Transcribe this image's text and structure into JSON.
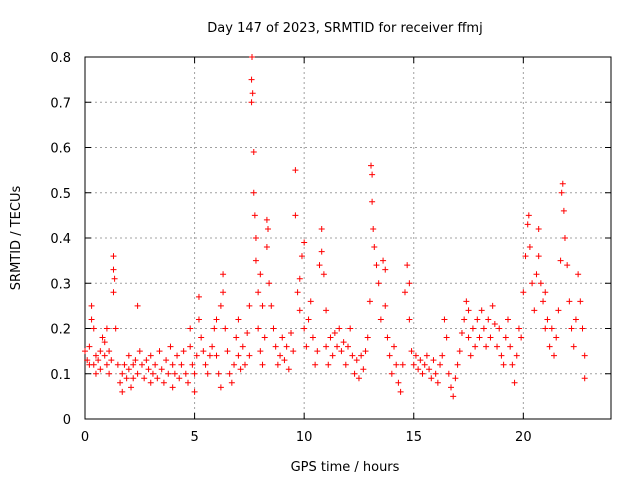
{
  "chart_data": {
    "type": "scatter",
    "title": "Day 147 of 2023, SRMTID for receiver ffmj",
    "xlabel": "GPS time / hours",
    "ylabel": "SRMTID / TECUs",
    "xlim": [
      0,
      24
    ],
    "ylim": [
      0,
      0.8
    ],
    "xticks": [
      0,
      5,
      10,
      15,
      20
    ],
    "yticks": [
      0,
      0.1,
      0.2,
      0.3,
      0.4,
      0.5,
      0.6,
      0.7,
      0.8
    ],
    "grid": true,
    "marker": "+",
    "series": [
      {
        "name": "SRMTID",
        "color": "#ff0000",
        "points": [
          [
            0.0,
            0.15
          ],
          [
            0.1,
            0.13
          ],
          [
            0.2,
            0.12
          ],
          [
            0.2,
            0.16
          ],
          [
            0.3,
            0.22
          ],
          [
            0.3,
            0.25
          ],
          [
            0.4,
            0.2
          ],
          [
            0.4,
            0.12
          ],
          [
            0.5,
            0.14
          ],
          [
            0.5,
            0.1
          ],
          [
            0.6,
            0.13
          ],
          [
            0.7,
            0.15
          ],
          [
            0.7,
            0.11
          ],
          [
            0.8,
            0.18
          ],
          [
            0.9,
            0.14
          ],
          [
            0.9,
            0.17
          ],
          [
            1.0,
            0.12
          ],
          [
            1.0,
            0.2
          ],
          [
            1.1,
            0.15
          ],
          [
            1.1,
            0.1
          ],
          [
            1.2,
            0.13
          ],
          [
            1.3,
            0.28
          ],
          [
            1.3,
            0.33
          ],
          [
            1.3,
            0.36
          ],
          [
            1.35,
            0.31
          ],
          [
            1.4,
            0.2
          ],
          [
            1.5,
            0.12
          ],
          [
            1.6,
            0.08
          ],
          [
            1.7,
            0.1
          ],
          [
            1.7,
            0.06
          ],
          [
            1.8,
            0.12
          ],
          [
            1.9,
            0.09
          ],
          [
            2.0,
            0.14
          ],
          [
            2.0,
            0.11
          ],
          [
            2.1,
            0.07
          ],
          [
            2.2,
            0.12
          ],
          [
            2.2,
            0.09
          ],
          [
            2.3,
            0.13
          ],
          [
            2.4,
            0.25
          ],
          [
            2.4,
            0.1
          ],
          [
            2.5,
            0.15
          ],
          [
            2.6,
            0.12
          ],
          [
            2.7,
            0.09
          ],
          [
            2.8,
            0.13
          ],
          [
            2.9,
            0.11
          ],
          [
            3.0,
            0.08
          ],
          [
            3.0,
            0.14
          ],
          [
            3.1,
            0.1
          ],
          [
            3.2,
            0.12
          ],
          [
            3.3,
            0.09
          ],
          [
            3.4,
            0.15
          ],
          [
            3.5,
            0.11
          ],
          [
            3.6,
            0.08
          ],
          [
            3.7,
            0.13
          ],
          [
            3.8,
            0.1
          ],
          [
            3.9,
            0.16
          ],
          [
            4.0,
            0.07
          ],
          [
            4.0,
            0.12
          ],
          [
            4.1,
            0.1
          ],
          [
            4.2,
            0.14
          ],
          [
            4.3,
            0.09
          ],
          [
            4.4,
            0.12
          ],
          [
            4.5,
            0.15
          ],
          [
            4.6,
            0.1
          ],
          [
            4.7,
            0.08
          ],
          [
            4.8,
            0.16
          ],
          [
            4.8,
            0.2
          ],
          [
            4.9,
            0.12
          ],
          [
            5.0,
            0.1
          ],
          [
            5.0,
            0.06
          ],
          [
            5.1,
            0.14
          ],
          [
            5.2,
            0.27
          ],
          [
            5.2,
            0.22
          ],
          [
            5.3,
            0.18
          ],
          [
            5.4,
            0.15
          ],
          [
            5.5,
            0.12
          ],
          [
            5.6,
            0.1
          ],
          [
            5.7,
            0.14
          ],
          [
            5.8,
            0.16
          ],
          [
            5.9,
            0.2
          ],
          [
            6.0,
            0.22
          ],
          [
            6.0,
            0.14
          ],
          [
            6.1,
            0.1
          ],
          [
            6.2,
            0.25
          ],
          [
            6.2,
            0.07
          ],
          [
            6.3,
            0.32
          ],
          [
            6.3,
            0.28
          ],
          [
            6.4,
            0.2
          ],
          [
            6.5,
            0.15
          ],
          [
            6.6,
            0.1
          ],
          [
            6.7,
            0.08
          ],
          [
            6.8,
            0.12
          ],
          [
            6.9,
            0.18
          ],
          [
            7.0,
            0.14
          ],
          [
            7.0,
            0.22
          ],
          [
            7.1,
            0.11
          ],
          [
            7.2,
            0.16
          ],
          [
            7.3,
            0.12
          ],
          [
            7.4,
            0.19
          ],
          [
            7.5,
            0.25
          ],
          [
            7.5,
            0.14
          ],
          [
            7.6,
            0.7
          ],
          [
            7.6,
            0.75
          ],
          [
            7.62,
            0.8
          ],
          [
            7.65,
            0.72
          ],
          [
            7.7,
            0.59
          ],
          [
            7.7,
            0.5
          ],
          [
            7.75,
            0.45
          ],
          [
            7.8,
            0.4
          ],
          [
            7.8,
            0.35
          ],
          [
            7.9,
            0.28
          ],
          [
            7.9,
            0.2
          ],
          [
            8.0,
            0.15
          ],
          [
            8.0,
            0.32
          ],
          [
            8.1,
            0.25
          ],
          [
            8.1,
            0.12
          ],
          [
            8.2,
            0.18
          ],
          [
            8.3,
            0.38
          ],
          [
            8.3,
            0.44
          ],
          [
            8.35,
            0.42
          ],
          [
            8.4,
            0.3
          ],
          [
            8.5,
            0.25
          ],
          [
            8.6,
            0.2
          ],
          [
            8.7,
            0.16
          ],
          [
            8.8,
            0.12
          ],
          [
            8.9,
            0.14
          ],
          [
            9.0,
            0.18
          ],
          [
            9.1,
            0.13
          ],
          [
            9.2,
            0.16
          ],
          [
            9.3,
            0.11
          ],
          [
            9.4,
            0.19
          ],
          [
            9.5,
            0.15
          ],
          [
            9.6,
            0.55
          ],
          [
            9.6,
            0.45
          ],
          [
            9.7,
            0.28
          ],
          [
            9.8,
            0.24
          ],
          [
            9.8,
            0.31
          ],
          [
            9.9,
            0.36
          ],
          [
            10.0,
            0.39
          ],
          [
            10.0,
            0.2
          ],
          [
            10.1,
            0.16
          ],
          [
            10.2,
            0.22
          ],
          [
            10.3,
            0.26
          ],
          [
            10.4,
            0.18
          ],
          [
            10.5,
            0.12
          ],
          [
            10.6,
            0.15
          ],
          [
            10.7,
            0.34
          ],
          [
            10.8,
            0.37
          ],
          [
            10.8,
            0.42
          ],
          [
            10.9,
            0.32
          ],
          [
            11.0,
            0.24
          ],
          [
            11.0,
            0.16
          ],
          [
            11.1,
            0.12
          ],
          [
            11.2,
            0.18
          ],
          [
            11.3,
            0.14
          ],
          [
            11.4,
            0.19
          ],
          [
            11.5,
            0.16
          ],
          [
            11.6,
            0.2
          ],
          [
            11.7,
            0.15
          ],
          [
            11.8,
            0.17
          ],
          [
            11.9,
            0.12
          ],
          [
            12.0,
            0.16
          ],
          [
            12.1,
            0.2
          ],
          [
            12.2,
            0.14
          ],
          [
            12.3,
            0.1
          ],
          [
            12.4,
            0.13
          ],
          [
            12.5,
            0.09
          ],
          [
            12.6,
            0.14
          ],
          [
            12.7,
            0.11
          ],
          [
            12.8,
            0.15
          ],
          [
            12.9,
            0.18
          ],
          [
            13.0,
            0.26
          ],
          [
            13.05,
            0.56
          ],
          [
            13.1,
            0.54
          ],
          [
            13.1,
            0.48
          ],
          [
            13.15,
            0.42
          ],
          [
            13.2,
            0.38
          ],
          [
            13.3,
            0.34
          ],
          [
            13.4,
            0.3
          ],
          [
            13.5,
            0.22
          ],
          [
            13.6,
            0.35
          ],
          [
            13.7,
            0.33
          ],
          [
            13.7,
            0.25
          ],
          [
            13.8,
            0.18
          ],
          [
            13.9,
            0.14
          ],
          [
            14.0,
            0.1
          ],
          [
            14.1,
            0.16
          ],
          [
            14.2,
            0.12
          ],
          [
            14.3,
            0.08
          ],
          [
            14.4,
            0.06
          ],
          [
            14.5,
            0.12
          ],
          [
            14.6,
            0.28
          ],
          [
            14.7,
            0.34
          ],
          [
            14.8,
            0.3
          ],
          [
            14.8,
            0.22
          ],
          [
            14.9,
            0.15
          ],
          [
            15.0,
            0.12
          ],
          [
            15.1,
            0.14
          ],
          [
            15.2,
            0.11
          ],
          [
            15.3,
            0.13
          ],
          [
            15.4,
            0.1
          ],
          [
            15.5,
            0.12
          ],
          [
            15.6,
            0.14
          ],
          [
            15.7,
            0.11
          ],
          [
            15.8,
            0.09
          ],
          [
            15.9,
            0.13
          ],
          [
            16.0,
            0.1
          ],
          [
            16.1,
            0.08
          ],
          [
            16.2,
            0.12
          ],
          [
            16.3,
            0.14
          ],
          [
            16.4,
            0.22
          ],
          [
            16.5,
            0.18
          ],
          [
            16.6,
            0.1
          ],
          [
            16.7,
            0.07
          ],
          [
            16.8,
            0.05
          ],
          [
            16.9,
            0.09
          ],
          [
            17.0,
            0.12
          ],
          [
            17.1,
            0.15
          ],
          [
            17.2,
            0.19
          ],
          [
            17.3,
            0.22
          ],
          [
            17.4,
            0.26
          ],
          [
            17.5,
            0.24
          ],
          [
            17.5,
            0.18
          ],
          [
            17.6,
            0.14
          ],
          [
            17.7,
            0.2
          ],
          [
            17.8,
            0.16
          ],
          [
            17.9,
            0.22
          ],
          [
            18.0,
            0.18
          ],
          [
            18.1,
            0.24
          ],
          [
            18.2,
            0.2
          ],
          [
            18.3,
            0.16
          ],
          [
            18.4,
            0.22
          ],
          [
            18.5,
            0.18
          ],
          [
            18.6,
            0.25
          ],
          [
            18.7,
            0.21
          ],
          [
            18.8,
            0.16
          ],
          [
            18.9,
            0.2
          ],
          [
            19.0,
            0.14
          ],
          [
            19.1,
            0.12
          ],
          [
            19.2,
            0.18
          ],
          [
            19.3,
            0.22
          ],
          [
            19.4,
            0.16
          ],
          [
            19.5,
            0.12
          ],
          [
            19.6,
            0.08
          ],
          [
            19.7,
            0.14
          ],
          [
            19.8,
            0.2
          ],
          [
            19.9,
            0.18
          ],
          [
            20.0,
            0.28
          ],
          [
            20.1,
            0.36
          ],
          [
            20.2,
            0.43
          ],
          [
            20.25,
            0.45
          ],
          [
            20.3,
            0.38
          ],
          [
            20.4,
            0.3
          ],
          [
            20.5,
            0.24
          ],
          [
            20.6,
            0.32
          ],
          [
            20.7,
            0.36
          ],
          [
            20.7,
            0.42
          ],
          [
            20.8,
            0.3
          ],
          [
            20.9,
            0.26
          ],
          [
            21.0,
            0.2
          ],
          [
            21.0,
            0.28
          ],
          [
            21.1,
            0.22
          ],
          [
            21.2,
            0.16
          ],
          [
            21.3,
            0.2
          ],
          [
            21.4,
            0.14
          ],
          [
            21.5,
            0.18
          ],
          [
            21.6,
            0.24
          ],
          [
            21.7,
            0.35
          ],
          [
            21.75,
            0.5
          ],
          [
            21.8,
            0.52
          ],
          [
            21.85,
            0.46
          ],
          [
            21.9,
            0.4
          ],
          [
            22.0,
            0.34
          ],
          [
            22.1,
            0.26
          ],
          [
            22.2,
            0.2
          ],
          [
            22.3,
            0.16
          ],
          [
            22.4,
            0.22
          ],
          [
            22.5,
            0.32
          ],
          [
            22.6,
            0.26
          ],
          [
            22.7,
            0.2
          ],
          [
            22.8,
            0.14
          ],
          [
            22.8,
            0.09
          ]
        ]
      }
    ]
  }
}
